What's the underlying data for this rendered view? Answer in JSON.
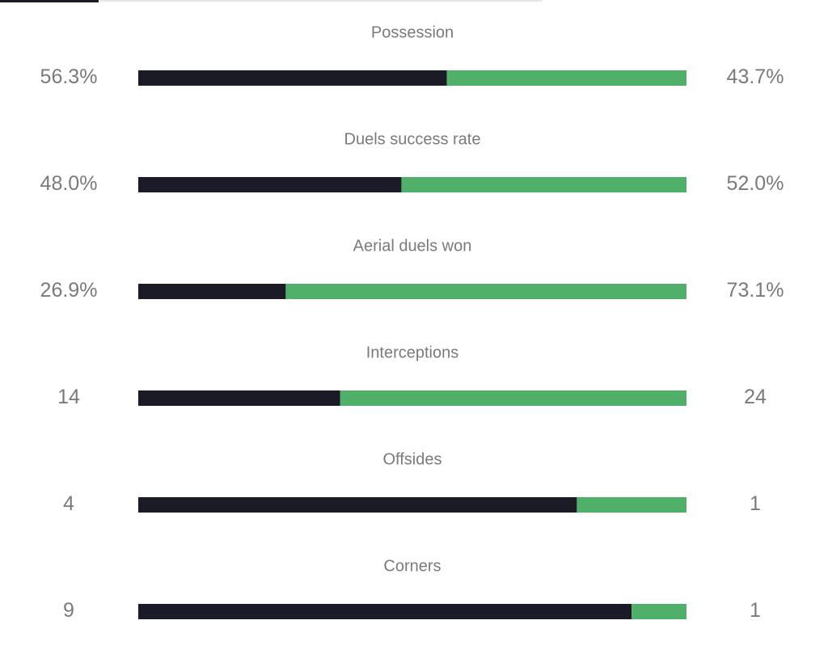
{
  "stats": [
    {
      "label": "Possession",
      "values": [
        56.3,
        43.7
      ],
      "value_labels": [
        "56.3%",
        "43.7%"
      ]
    },
    {
      "label": "Duels success rate",
      "values": [
        48.0,
        52.0
      ],
      "value_labels": [
        "48.0%",
        "52.0%"
      ]
    },
    {
      "label": "Aerial duels won",
      "values": [
        26.9,
        73.1
      ],
      "value_labels": [
        "26.9%",
        "73.1%"
      ]
    },
    {
      "label": "Interceptions",
      "values": [
        14,
        24
      ]
    },
    {
      "label": "Offsides",
      "values": [
        4,
        1
      ]
    },
    {
      "label": "Corners",
      "values": [
        9,
        1
      ]
    }
  ],
  "colors": {
    "home": "#1b1a27",
    "away": "#50b06a"
  }
}
